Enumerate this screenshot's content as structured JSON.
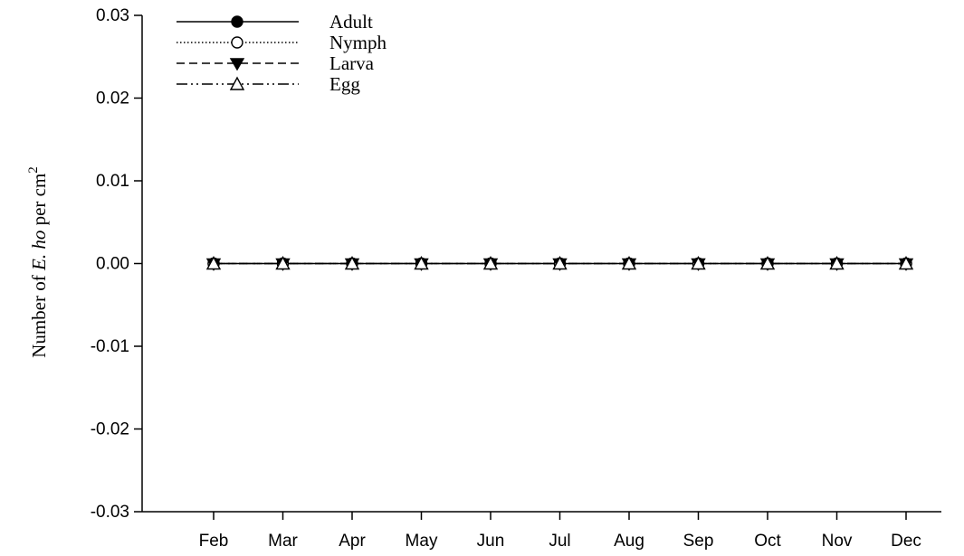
{
  "chart_data": {
    "type": "line",
    "categories": [
      "Feb",
      "Mar",
      "Apr",
      "May",
      "Jun",
      "Jul",
      "Aug",
      "Sep",
      "Oct",
      "Nov",
      "Dec"
    ],
    "series": [
      {
        "name": "Adult",
        "values": [
          0,
          0,
          0,
          0,
          0,
          0,
          0,
          0,
          0,
          0,
          0
        ],
        "marker": "filled-circle",
        "line": "solid"
      },
      {
        "name": "Nymph",
        "values": [
          0,
          0,
          0,
          0,
          0,
          0,
          0,
          0,
          0,
          0,
          0
        ],
        "marker": "open-circle",
        "line": "dotted"
      },
      {
        "name": "Larva",
        "values": [
          0,
          0,
          0,
          0,
          0,
          0,
          0,
          0,
          0,
          0,
          0
        ],
        "marker": "filled-triangle-down",
        "line": "dashed"
      },
      {
        "name": "Egg",
        "values": [
          0,
          0,
          0,
          0,
          0,
          0,
          0,
          0,
          0,
          0,
          0
        ],
        "marker": "open-triangle-up",
        "line": "dash-dot-dot"
      }
    ],
    "ylabel": {
      "prefix": "Number of ",
      "italic": "E. ho",
      "suffix": " per cm",
      "superscript": "2"
    },
    "xlabel": "",
    "ylim": [
      -0.03,
      0.03
    ],
    "yticks": [
      "-0.03",
      "-0.02",
      "-0.01",
      "0.00",
      "0.01",
      "0.02",
      "0.03"
    ],
    "grid": false,
    "legend_position": "top-left",
    "colors": {
      "line": "#000000",
      "background": "#ffffff"
    }
  }
}
